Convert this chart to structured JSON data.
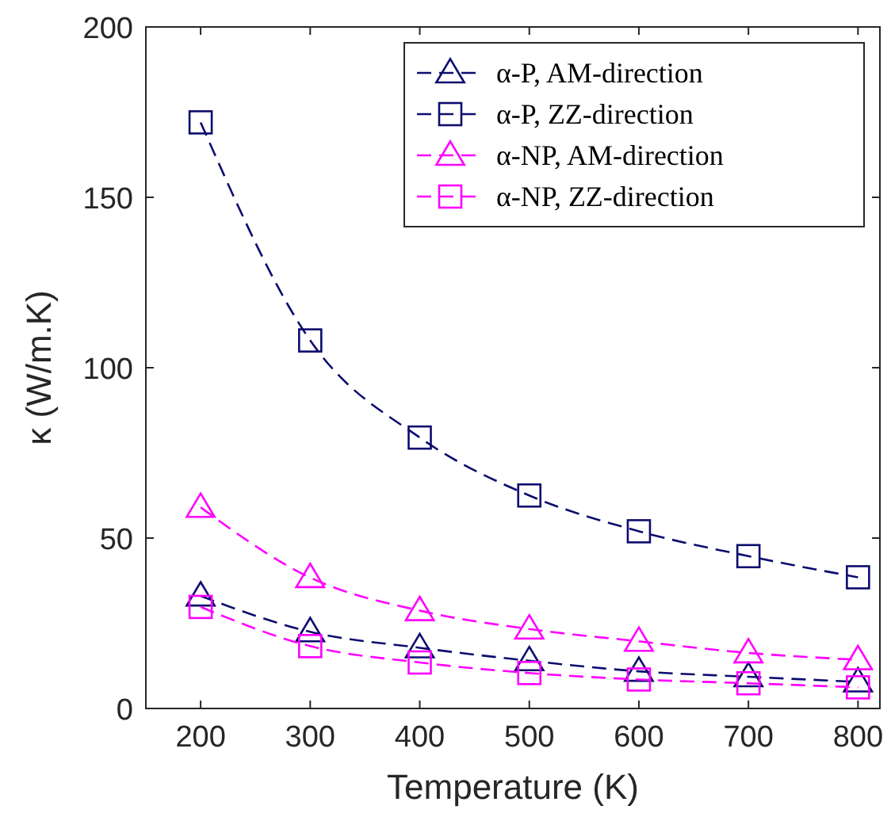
{
  "chart_data": {
    "type": "line",
    "xlabel": "Temperature (K)",
    "ylabel": "κ (W/m.K)",
    "x": [
      200,
      300,
      400,
      500,
      600,
      700,
      800
    ],
    "xlim": [
      150,
      820
    ],
    "xticks": [
      200,
      300,
      400,
      500,
      600,
      700,
      800
    ],
    "ylim": [
      0,
      200
    ],
    "yticks": [
      0,
      50,
      100,
      150,
      200
    ],
    "grid": false,
    "legend": "top right",
    "line_style": "dashed",
    "series": [
      {
        "name": "α-P, AM-direction",
        "color": "#0c0c6e",
        "marker": "triangle",
        "values": [
          33,
          22.5,
          17.8,
          14,
          10.9,
          9.3,
          7.8
        ]
      },
      {
        "name": "α-P, ZZ-direction",
        "color": "#0c0c6e",
        "marker": "square",
        "values": [
          172,
          108,
          79.5,
          62.5,
          52,
          44.7,
          38.5
        ]
      },
      {
        "name": "α-NP, AM-direction",
        "color": "#ff00ff",
        "marker": "triangle",
        "values": [
          59,
          38.4,
          28.7,
          23.3,
          19.7,
          16.3,
          14.3
        ]
      },
      {
        "name": "α-NP, ZZ-direction",
        "color": "#ff00ff",
        "marker": "square",
        "values": [
          29.8,
          18.3,
          13.5,
          10.4,
          8.5,
          7.4,
          6.2
        ]
      }
    ]
  }
}
